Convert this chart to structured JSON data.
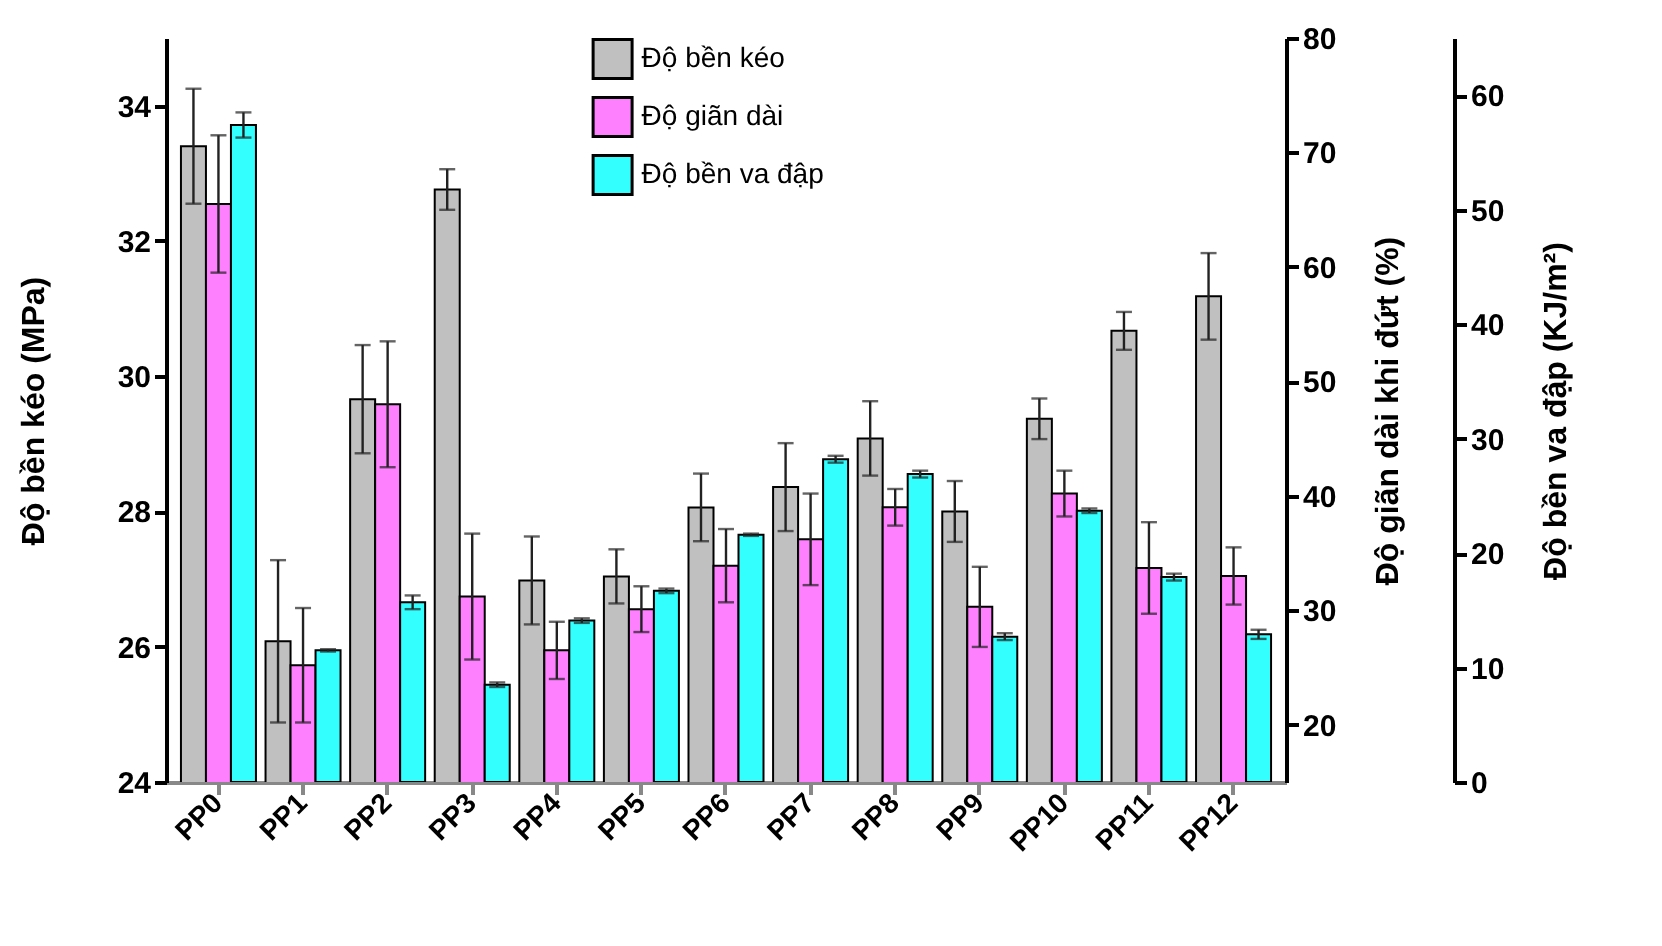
{
  "chart_data": {
    "type": "bar",
    "categories": [
      "PP0",
      "PP1",
      "PP2",
      "PP3",
      "PP4",
      "PP5",
      "PP6",
      "PP7",
      "PP8",
      "PP9",
      "PP10",
      "PP11",
      "PP12"
    ],
    "ylabel": "Độ bền kéo (MPa)",
    "y2label": "Độ giãn dài khi đứt (%)",
    "y3label": "Độ bền va đập (KJ/m²)",
    "ylim": [
      24,
      35
    ],
    "yticks": [
      24,
      26,
      28,
      30,
      32,
      34
    ],
    "y2lim": [
      15,
      80
    ],
    "y2ticks": [
      20,
      30,
      40,
      50,
      60,
      70,
      80
    ],
    "y3lim": [
      0,
      65
    ],
    "y3ticks": [
      0,
      10,
      20,
      30,
      40,
      50,
      60
    ],
    "legend": "top",
    "grid": false,
    "series": [
      {
        "name": "Độ bền kéo",
        "color": "#c0c0c0",
        "axis": "y",
        "values": [
          33.4,
          26.08,
          29.66,
          32.76,
          26.98,
          27.04,
          28.06,
          28.36,
          29.08,
          28.0,
          29.37,
          30.67,
          31.18
        ],
        "errors": [
          0.85,
          1.2,
          0.8,
          0.3,
          0.65,
          0.4,
          0.5,
          0.65,
          0.55,
          0.45,
          0.3,
          0.28,
          0.64
        ]
      },
      {
        "name": "Độ giãn dài",
        "color": "#ff80ff",
        "axis": "y2",
        "values": [
          65.5,
          25.2,
          48.0,
          31.2,
          26.5,
          30.1,
          33.9,
          36.2,
          39.0,
          30.3,
          40.2,
          33.7,
          33.0
        ],
        "errors": [
          6,
          5,
          5.5,
          5.5,
          2.5,
          2,
          3.2,
          4,
          1.6,
          3.5,
          2,
          4,
          2.5
        ]
      },
      {
        "name": "Độ bền va đập",
        "color": "#33ffff",
        "axis": "y3",
        "values": [
          57.4,
          11.5,
          15.7,
          8.5,
          14.1,
          16.7,
          21.6,
          28.2,
          26.9,
          12.7,
          23.7,
          17.9,
          12.9
        ],
        "errors": [
          1.1,
          0.1,
          0.6,
          0.2,
          0.2,
          0.2,
          0.1,
          0.3,
          0.3,
          0.3,
          0.2,
          0.3,
          0.4
        ]
      }
    ]
  }
}
